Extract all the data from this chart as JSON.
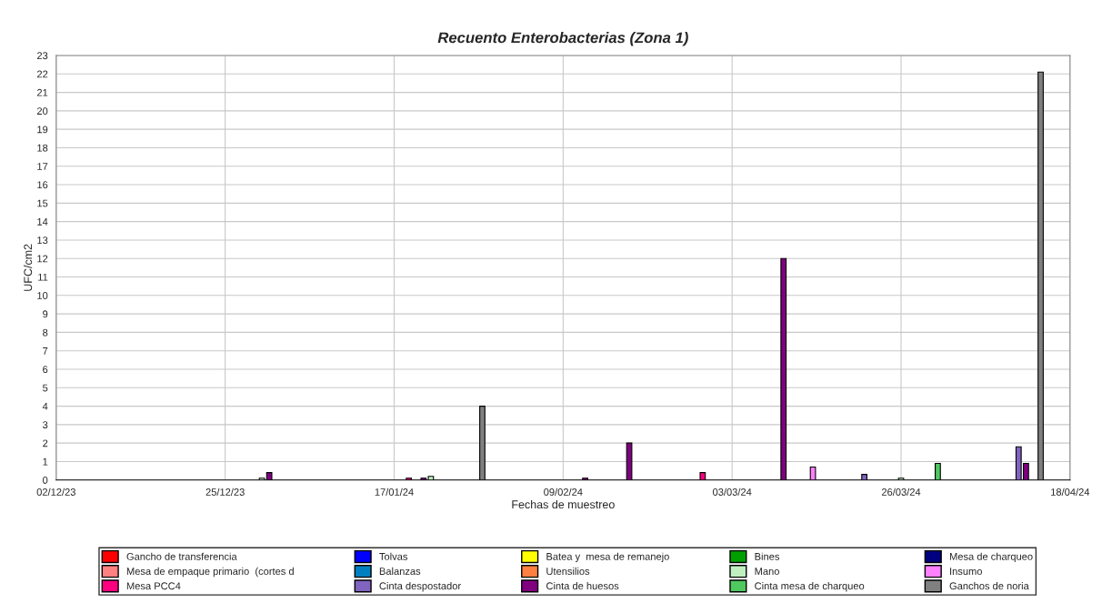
{
  "chart_data": {
    "type": "bar",
    "title": "Recuento Enterobacterias (Zona 1)",
    "xlabel": "Fechas de muestreo",
    "ylabel": "UFC/cm2",
    "xlim": [
      "2023-12-02",
      "2024-04-18"
    ],
    "xticks": [
      {
        "value": "2023-12-02",
        "label": "02/12/23"
      },
      {
        "value": "2023-12-25",
        "label": "25/12/23"
      },
      {
        "value": "2024-01-17",
        "label": "17/01/24"
      },
      {
        "value": "2024-02-09",
        "label": "09/02/24"
      },
      {
        "value": "2024-03-03",
        "label": "03/03/24"
      },
      {
        "value": "2024-03-26",
        "label": "26/03/24"
      },
      {
        "value": "2024-04-18",
        "label": "18/04/24"
      }
    ],
    "ylim": [
      0,
      23
    ],
    "yticks": [
      0,
      1,
      2,
      3,
      4,
      5,
      6,
      7,
      8,
      9,
      10,
      11,
      12,
      13,
      14,
      15,
      16,
      17,
      18,
      19,
      20,
      21,
      22,
      23
    ],
    "grid": true,
    "legend": "bottom",
    "series": [
      {
        "name": "Gancho de transferencia",
        "color": "#ff0000"
      },
      {
        "name": "Mesa de empaque primario  (cortes d",
        "color": "#ff8080"
      },
      {
        "name": "Mesa PCC4",
        "color": "#ff0080",
        "x": [
          "2024-01-19",
          "2024-02-28"
        ],
        "values": [
          0.1,
          0.4
        ]
      },
      {
        "name": "Tolvas",
        "color": "#0000ff"
      },
      {
        "name": "Balanzas",
        "color": "#0080c0"
      },
      {
        "name": "Cinta despostador",
        "color": "#8064c0",
        "x": [
          "2024-03-21",
          "2024-04-11"
        ],
        "values": [
          0.3,
          1.8
        ]
      },
      {
        "name": "Batea y  mesa de remanejo",
        "color": "#ffff00"
      },
      {
        "name": "Utensilios",
        "color": "#ff8040"
      },
      {
        "name": "Cinta de huesos",
        "color": "#800080",
        "x": [
          "2023-12-31",
          "2024-01-21",
          "2024-02-12",
          "2024-02-18",
          "2024-03-10",
          "2024-04-12"
        ],
        "values": [
          0.4,
          0.1,
          0.1,
          2,
          12,
          0.9
        ]
      },
      {
        "name": "Bines",
        "color": "#00a000"
      },
      {
        "name": "Mano",
        "color": "#c0f0c0",
        "x": [
          "2023-12-30",
          "2024-01-22",
          "2024-03-26"
        ],
        "values": [
          0.1,
          0.2,
          0.1
        ]
      },
      {
        "name": "Cinta mesa de charqueo",
        "color": "#50c860",
        "x": [
          "2024-03-31"
        ],
        "values": [
          0.9
        ]
      },
      {
        "name": "Mesa de charqueo",
        "color": "#000080"
      },
      {
        "name": "Insumo",
        "color": "#ff80ff",
        "x": [
          "2024-03-14"
        ],
        "values": [
          0.7
        ]
      },
      {
        "name": "Ganchos de noria",
        "color": "#808080",
        "x": [
          "2024-01-29",
          "2024-04-14"
        ],
        "values": [
          4,
          22.1
        ]
      }
    ]
  }
}
